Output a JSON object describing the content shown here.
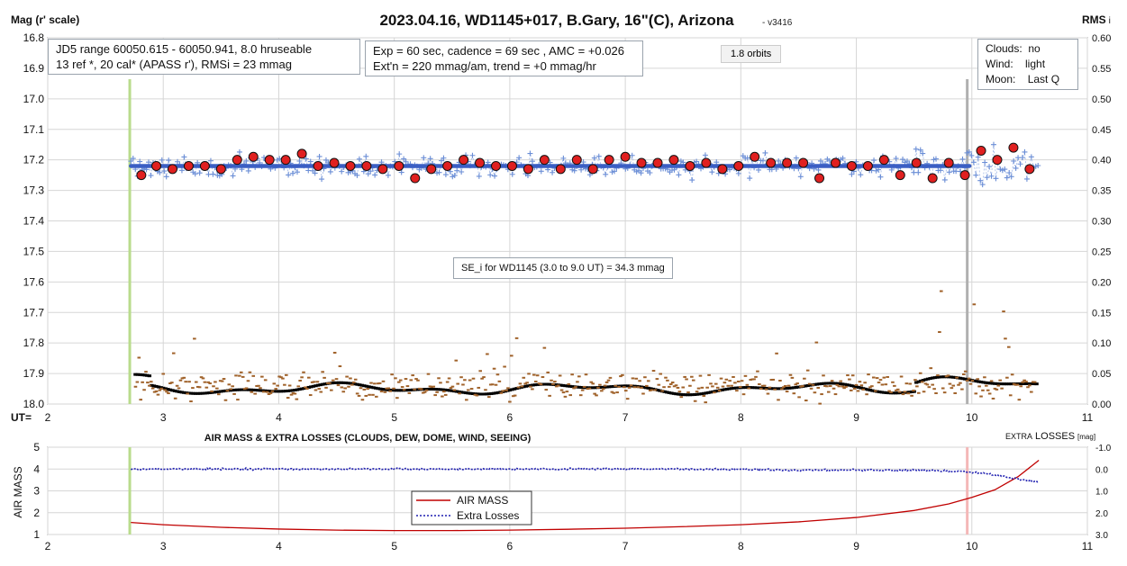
{
  "chart_data": [
    {
      "type": "scatter",
      "title": "2023.04.16, WD1145+017, B.Gary, 16\"(C), Arizona",
      "version": "- v3416",
      "ylabel": "Mag (r' scale)",
      "y2label": "RMS",
      "y2label_suffix": "i",
      "xlabel": "UT=",
      "xlim": [
        2,
        11
      ],
      "ylim": [
        18.0,
        16.8
      ],
      "y2lim": [
        0.0,
        0.6
      ],
      "x_ticks": [
        "2",
        "3",
        "4",
        "5",
        "6",
        "7",
        "8",
        "9",
        "10",
        "11"
      ],
      "y_ticks": [
        "16.8",
        "16.9",
        "17.0",
        "17.1",
        "17.2",
        "17.3",
        "17.4",
        "17.5",
        "17.6",
        "17.7",
        "17.8",
        "17.9",
        "18.0"
      ],
      "y2_ticks": [
        "0.60",
        "0.55",
        "0.50",
        "0.45",
        "0.40",
        "0.35",
        "0.30",
        "0.25",
        "0.20",
        "0.15",
        "0.10",
        "0.05",
        "0.00"
      ],
      "grid": true,
      "annotations": {
        "info1": [
          "JD5 range 60050.615 - 60050.941, 8.0 hruseable",
          "13 ref *, 20 cal*  (APASS r'), RMSi = 23 mmag"
        ],
        "info2": [
          "Exp = 60 sec, cadence = 69 sec , AMC = +0.026",
          "Ext'n = 220 mmag/am, trend = +0 mmag/hr"
        ],
        "orbits": "1.8 orbits",
        "weather": [
          "Clouds:  no",
          "Wind:    light",
          "Moon:    Last Q"
        ],
        "se": "SE_i for WD1145 (3.0 to 9.0 UT) = 34.3 mmag"
      },
      "vertical_lines": [
        {
          "x": 2.71,
          "color": "#b9dc8c"
        },
        {
          "x": 9.96,
          "color": "#b0b0b0"
        }
      ],
      "trend_line": {
        "x": [
          2.72,
          9.98
        ],
        "y": [
          17.22,
          17.22
        ],
        "color": "#3b5fc4"
      },
      "binned_points": {
        "color": "#e02020",
        "x": [
          2.81,
          2.94,
          3.08,
          3.22,
          3.36,
          3.5,
          3.64,
          3.78,
          3.92,
          4.06,
          4.2,
          4.34,
          4.48,
          4.62,
          4.76,
          4.9,
          5.04,
          5.18,
          5.32,
          5.46,
          5.6,
          5.74,
          5.88,
          6.02,
          6.16,
          6.3,
          6.44,
          6.58,
          6.72,
          6.86,
          7.0,
          7.14,
          7.28,
          7.42,
          7.56,
          7.7,
          7.84,
          7.98,
          8.12,
          8.26,
          8.4,
          8.54,
          8.68,
          8.82,
          8.96,
          9.1,
          9.24,
          9.38,
          9.52,
          9.66,
          9.8,
          9.94,
          10.08,
          10.22,
          10.36,
          10.5
        ],
        "y": [
          17.25,
          17.22,
          17.23,
          17.22,
          17.22,
          17.23,
          17.2,
          17.19,
          17.2,
          17.2,
          17.18,
          17.22,
          17.21,
          17.22,
          17.22,
          17.23,
          17.22,
          17.26,
          17.23,
          17.22,
          17.2,
          17.21,
          17.22,
          17.22,
          17.23,
          17.2,
          17.23,
          17.2,
          17.23,
          17.2,
          17.19,
          17.21,
          17.21,
          17.2,
          17.22,
          17.21,
          17.23,
          17.22,
          17.19,
          17.21,
          17.21,
          17.21,
          17.26,
          17.21,
          17.22,
          17.22,
          17.2,
          17.25,
          17.21,
          17.26,
          17.21,
          17.25,
          17.17,
          17.2,
          17.16,
          17.23
        ]
      },
      "series": [
        {
          "name": "raw magnitudes",
          "color": "#6b8ed6",
          "marker": "+",
          "x_range": [
            2.72,
            10.58
          ],
          "center": 17.22,
          "scatter": 0.035
        },
        {
          "name": "RMS",
          "color": "#000000",
          "marker": "dash",
          "x_range": [
            2.76,
            10.56
          ],
          "center": 0.03,
          "axis": "y2"
        },
        {
          "name": "RMS spread",
          "color": "#a0622a",
          "marker": "dash",
          "x_range": [
            2.76,
            10.56
          ],
          "center": 0.03,
          "axis": "y2"
        }
      ]
    },
    {
      "type": "line",
      "title": "AIR MASS & EXTRA LOSSES (CLOUDS, DEW, DOME, WIND, SEEING)",
      "ylabel": "AIR MASS",
      "y2label": "EXTRA",
      "y2label_rest": "LOSSES",
      "y2label_unit": "[mag]",
      "xlim": [
        2,
        11
      ],
      "ylim": [
        1,
        5
      ],
      "y2lim": [
        3.0,
        -1.0
      ],
      "x_ticks": [
        "2",
        "3",
        "4",
        "5",
        "6",
        "7",
        "8",
        "9",
        "10",
        "11"
      ],
      "y_ticks": [
        "1",
        "2",
        "3",
        "4",
        "5"
      ],
      "y2_ticks": [
        "3.0",
        "2.0",
        "1.0",
        "0.0",
        "-1.0"
      ],
      "vertical_lines": [
        {
          "x": 2.71,
          "color": "#b9dc8c"
        },
        {
          "x": 9.96,
          "color": "#f4b8b8"
        }
      ],
      "series": [
        {
          "name": "AIR MASS",
          "color": "#c00000",
          "style": "solid",
          "x": [
            2.72,
            3.0,
            3.5,
            4.0,
            4.5,
            5.0,
            5.5,
            6.0,
            6.5,
            7.0,
            7.5,
            8.0,
            8.5,
            9.0,
            9.5,
            9.8,
            10.0,
            10.2,
            10.4,
            10.58
          ],
          "y": [
            1.55,
            1.45,
            1.33,
            1.25,
            1.2,
            1.18,
            1.18,
            1.2,
            1.24,
            1.29,
            1.36,
            1.45,
            1.58,
            1.78,
            2.1,
            2.4,
            2.7,
            3.05,
            3.65,
            4.4
          ]
        },
        {
          "name": "Extra Losses",
          "color": "#1f1fb0",
          "style": "dotted",
          "axis": "y2",
          "x": [
            2.72,
            3.5,
            4.5,
            5.5,
            6.5,
            7.5,
            8.5,
            9.5,
            9.9,
            10.1,
            10.3,
            10.45,
            10.58
          ],
          "y": [
            0.0,
            0.0,
            0.0,
            0.0,
            0.0,
            0.0,
            0.05,
            0.05,
            0.1,
            0.2,
            0.35,
            0.5,
            0.6
          ]
        }
      ]
    }
  ]
}
